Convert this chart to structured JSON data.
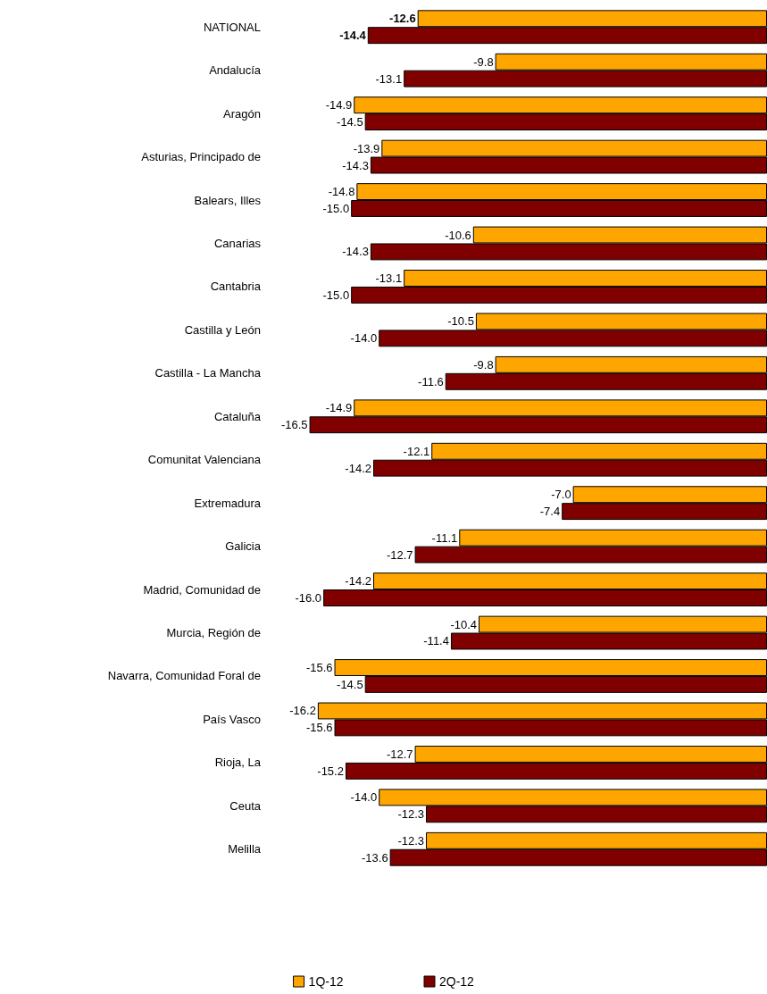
{
  "chart_data": {
    "type": "bar",
    "orientation": "horizontal",
    "categories": [
      "NATIONAL",
      "Andalucía",
      "Aragón",
      "Asturias, Principado de",
      "Balears, Illes",
      "Canarias",
      "Cantabria",
      "Castilla y León",
      "Castilla - La Mancha",
      "Cataluña",
      "Comunitat Valenciana",
      "Extremadura",
      "Galicia",
      "Madrid, Comunidad de",
      "Murcia, Región de",
      "Navarra, Comunidad Foral de",
      "País Vasco",
      "Rioja, La",
      "Ceuta",
      "Melilla"
    ],
    "series": [
      {
        "name": "1Q-12",
        "color": "#ffa500",
        "values": [
          -12.6,
          -9.8,
          -14.9,
          -13.9,
          -14.8,
          -10.6,
          -13.1,
          -10.5,
          -9.8,
          -14.9,
          -12.1,
          -7.0,
          -11.1,
          -14.2,
          -10.4,
          -15.6,
          -16.2,
          -12.7,
          -14.0,
          -12.3
        ],
        "value_labels": [
          "-12.6",
          "-9.8",
          "-14.9",
          "-13.9",
          "-14.8",
          "-10.6",
          "-13.1",
          "-10.5",
          "-9.8",
          "-14.9",
          "-12.1",
          "-7.0",
          "-11.1",
          "-14.2",
          "-10.4",
          "-15.6",
          "-16.2",
          "-12.7",
          "-14.0",
          "-12.3"
        ]
      },
      {
        "name": "2Q-12",
        "color": "#800000",
        "values": [
          -14.4,
          -13.1,
          -14.5,
          -14.3,
          -15.0,
          -14.3,
          -15.0,
          -14.0,
          -11.6,
          -16.5,
          -14.2,
          -7.4,
          -12.7,
          -16.0,
          -11.4,
          -14.5,
          -15.6,
          -15.2,
          -12.3,
          -13.6
        ],
        "value_labels": [
          "-14.4",
          "-13.1",
          "-14.5",
          "-14.3",
          "-15.0",
          "-14.3",
          "-15.0",
          "-14.0",
          "-11.6",
          "-16.5",
          "-14.2",
          "-7.4",
          "-12.7",
          "-16.0",
          "-11.4",
          "-14.5",
          "-15.6",
          "-15.2",
          "-12.3",
          "-13.6"
        ]
      }
    ],
    "legend": "bottom"
  }
}
